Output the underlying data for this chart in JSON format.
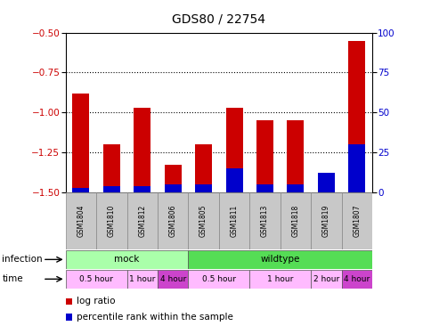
{
  "title": "GDS80 / 22754",
  "samples": [
    "GSM1804",
    "GSM1810",
    "GSM1812",
    "GSM1806",
    "GSM1805",
    "GSM1811",
    "GSM1813",
    "GSM1818",
    "GSM1819",
    "GSM1807"
  ],
  "log_ratio": [
    -0.88,
    -1.2,
    -0.97,
    -1.33,
    -1.2,
    -0.97,
    -1.05,
    -1.05,
    -1.47,
    -0.55
  ],
  "percentile_rank": [
    3,
    4,
    4,
    5,
    5,
    15,
    5,
    5,
    12,
    30
  ],
  "ylim_left": [
    -1.5,
    -0.5
  ],
  "ylim_right": [
    0,
    100
  ],
  "yticks_left": [
    -1.5,
    -1.25,
    -1.0,
    -0.75,
    -0.5
  ],
  "yticks_right": [
    0,
    25,
    50,
    75,
    100
  ],
  "bar_color": "#cc0000",
  "percentile_color": "#0000cc",
  "infection_groups": [
    {
      "label": "mock",
      "start": 0,
      "end": 4,
      "color": "#aaffaa"
    },
    {
      "label": "wildtype",
      "start": 4,
      "end": 10,
      "color": "#55dd55"
    }
  ],
  "time_groups": [
    {
      "label": "0.5 hour",
      "start": 0,
      "end": 2,
      "color": "#ffbbff"
    },
    {
      "label": "1 hour",
      "start": 2,
      "end": 3,
      "color": "#ffbbff"
    },
    {
      "label": "4 hour",
      "start": 3,
      "end": 4,
      "color": "#cc44cc"
    },
    {
      "label": "0.5 hour",
      "start": 4,
      "end": 6,
      "color": "#ffbbff"
    },
    {
      "label": "1 hour",
      "start": 6,
      "end": 8,
      "color": "#ffbbff"
    },
    {
      "label": "2 hour",
      "start": 8,
      "end": 9,
      "color": "#ffbbff"
    },
    {
      "label": "4 hour",
      "start": 9,
      "end": 10,
      "color": "#cc44cc"
    }
  ],
  "legend_items": [
    {
      "label": "log ratio",
      "color": "#cc0000"
    },
    {
      "label": "percentile rank within the sample",
      "color": "#0000cc"
    }
  ],
  "grid_yticks": [
    -0.75,
    -1.0,
    -1.25
  ],
  "background_color": "#ffffff",
  "tick_label_color_left": "#cc0000",
  "tick_label_color_right": "#0000cc",
  "bar_width": 0.55,
  "sample_box_color": "#c8c8c8",
  "title_fontsize": 10,
  "tick_fontsize": 7.5,
  "label_fontsize": 7.5,
  "infection_fontsize": 7.5,
  "time_fontsize": 6.5
}
